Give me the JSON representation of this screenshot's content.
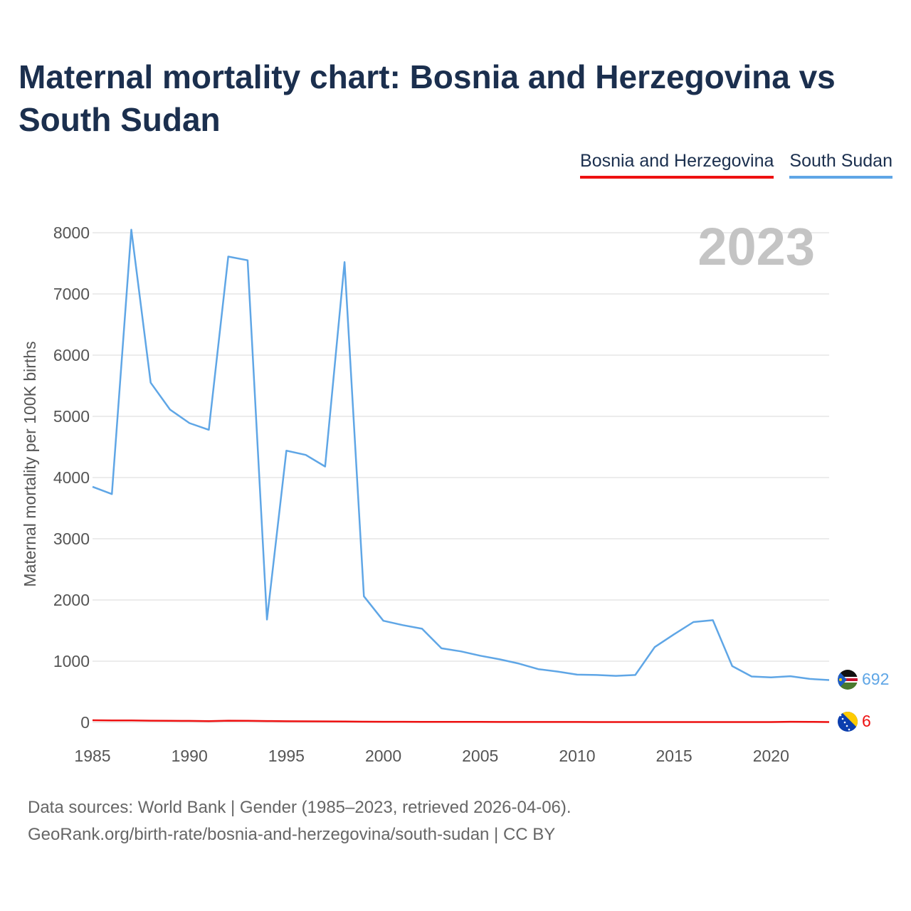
{
  "title": "Maternal mortality chart: Bosnia and Herzegovina vs South Sudan",
  "legend": {
    "items": [
      {
        "label": "Bosnia and Herzegovina",
        "color": "#ee1111"
      },
      {
        "label": "South Sudan",
        "color": "#5fa6e6"
      }
    ]
  },
  "year_watermark": "2023",
  "footer": {
    "line1": "Data sources: World Bank | Gender (1985–2023, retrieved 2026-04-06).",
    "line2": "GeoRank.org/birth-rate/bosnia-and-herzegovina/south-sudan | CC BY"
  },
  "chart_data": {
    "type": "line",
    "title": "Maternal mortality chart: Bosnia and Herzegovina vs South Sudan",
    "xlabel": "",
    "ylabel": "Maternal mortality per 100K births",
    "xlim": [
      1985,
      2023
    ],
    "ylim": [
      0,
      8000
    ],
    "xticks": [
      1985,
      1990,
      1995,
      2000,
      2005,
      2010,
      2015,
      2020
    ],
    "yticks": [
      0,
      1000,
      2000,
      3000,
      4000,
      5000,
      6000,
      7000,
      8000
    ],
    "grid": true,
    "legend_position": "top-right",
    "x": [
      1985,
      1986,
      1987,
      1988,
      1989,
      1990,
      1991,
      1992,
      1993,
      1994,
      1995,
      1996,
      1997,
      1998,
      1999,
      2000,
      2001,
      2002,
      2003,
      2004,
      2005,
      2006,
      2007,
      2008,
      2009,
      2010,
      2011,
      2012,
      2013,
      2014,
      2015,
      2016,
      2017,
      2018,
      2019,
      2020,
      2021,
      2022,
      2023
    ],
    "series": [
      {
        "name": "Bosnia and Herzegovina",
        "color": "#ee1111",
        "end_label": "6",
        "values": [
          35,
          33,
          31,
          28,
          26,
          24,
          21,
          28,
          26,
          22,
          19,
          17,
          16,
          14,
          12,
          11,
          10,
          9,
          9,
          8,
          8,
          7,
          7,
          7,
          7,
          7,
          6,
          6,
          6,
          6,
          6,
          6,
          6,
          6,
          6,
          6,
          10,
          9,
          6
        ]
      },
      {
        "name": "South Sudan",
        "color": "#5fa6e6",
        "end_label": "692",
        "values": [
          3850,
          3730,
          8050,
          5550,
          5110,
          4890,
          4780,
          7610,
          7550,
          1680,
          4440,
          4370,
          4180,
          7520,
          2060,
          1660,
          1590,
          1530,
          1210,
          1160,
          1090,
          1030,
          960,
          870,
          830,
          780,
          775,
          760,
          775,
          1230,
          1440,
          1640,
          1670,
          920,
          750,
          735,
          755,
          710,
          692
        ]
      }
    ]
  }
}
